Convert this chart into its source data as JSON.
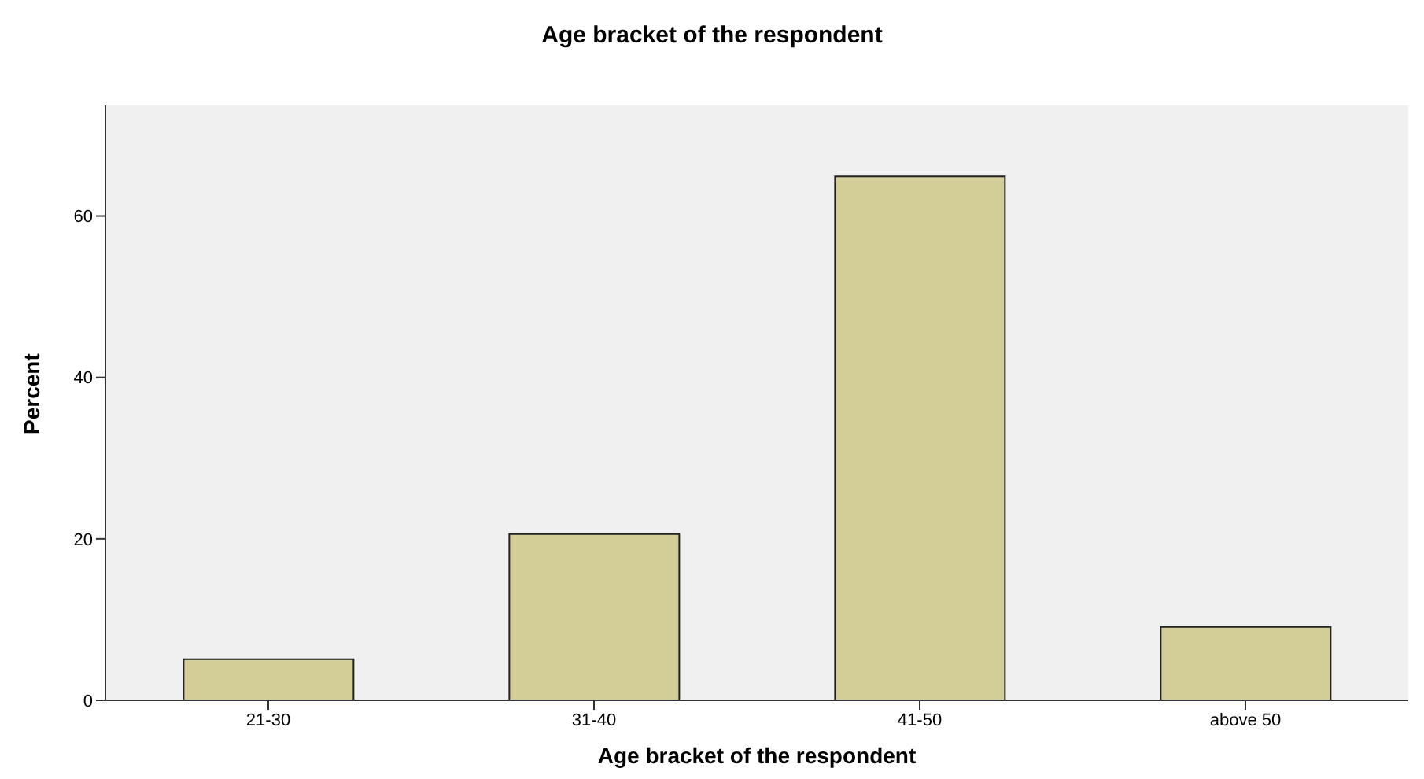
{
  "chart_data": {
    "type": "bar",
    "title": "Age bracket of the respondent",
    "xlabel": "Age bracket of the respondent",
    "ylabel": "Percent",
    "categories": [
      "21-30",
      "31-40",
      "41-50",
      "above 50"
    ],
    "values": [
      5.1,
      20.6,
      64.9,
      9.1
    ],
    "color": "#d3cd97",
    "ylim": [
      0,
      73.7
    ],
    "yticks": [
      0,
      20,
      40,
      60
    ],
    "grid": false
  }
}
